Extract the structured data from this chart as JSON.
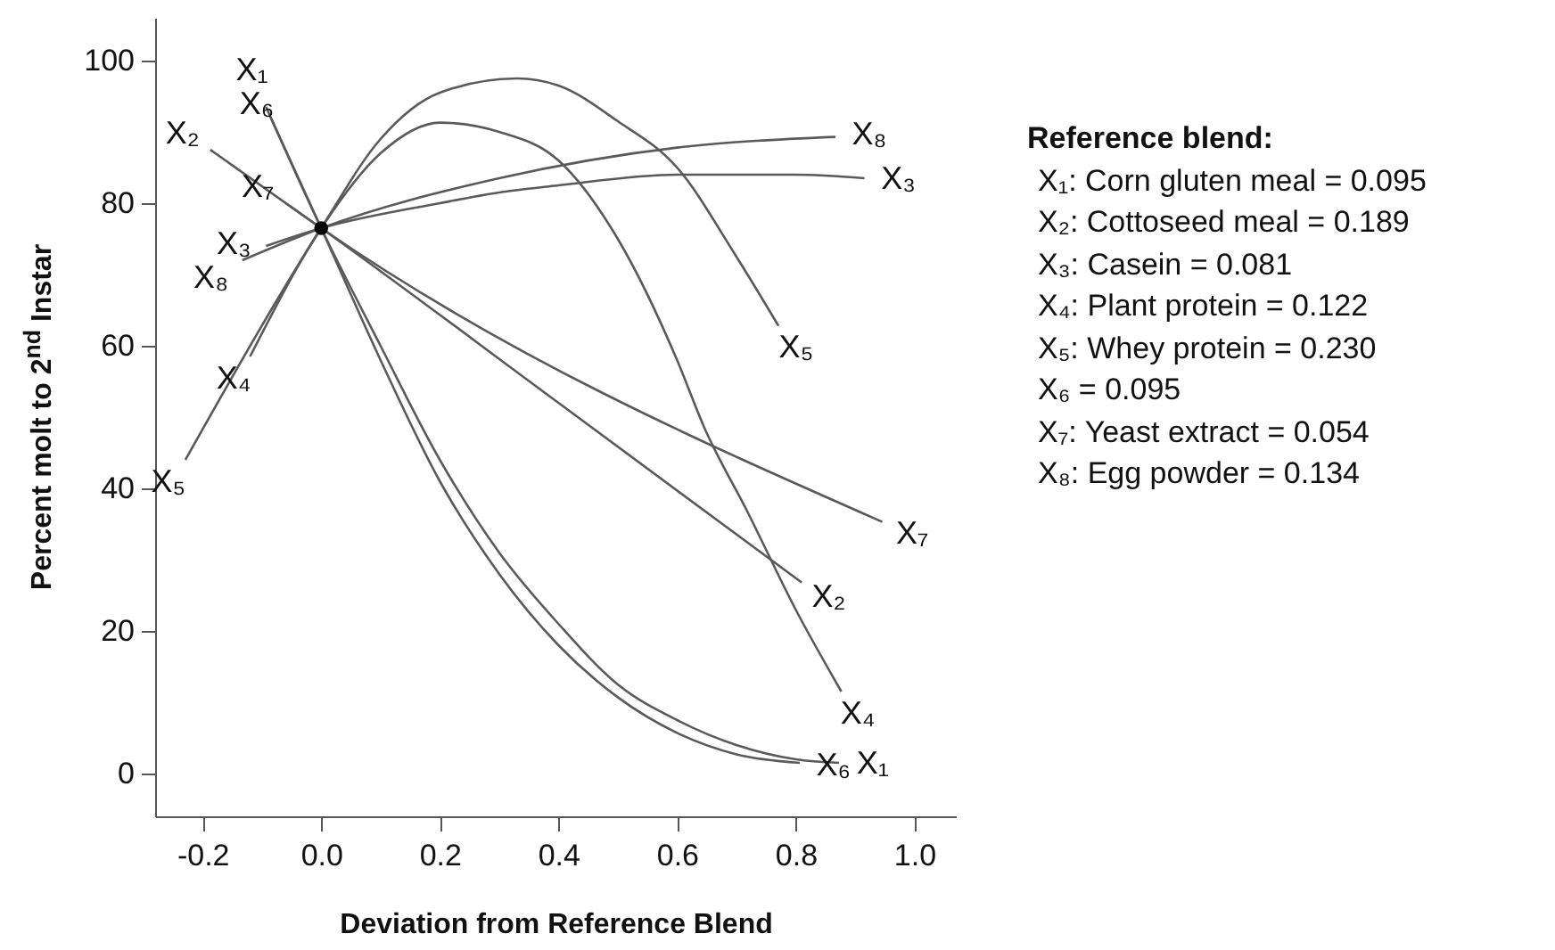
{
  "chart_data": {
    "type": "line",
    "xlabel": "Deviation from Reference Blend",
    "ylabel": "Percent molt to 2$^{nd}$ Instar",
    "xlim": [
      -0.28,
      1.07
    ],
    "ylim": [
      -6,
      106
    ],
    "xticks": [
      -0.2,
      {
        "value": 0,
        "label": "0.0"
      },
      0.2,
      0.4,
      0.6,
      0.8,
      {
        "value": 1,
        "label": "1.0"
      }
    ],
    "yticks": [
      0,
      20,
      40,
      60,
      80,
      100
    ],
    "grid": false,
    "marker": "none",
    "line_style": "solid",
    "series": [
      {
        "name": "X₁",
        "color": "#5a5a5a",
        "x": [
          -0.093,
          0,
          0.1,
          0.2,
          0.3,
          0.4,
          0.5,
          0.6,
          0.7,
          0.8,
          0.873
        ],
        "values": [
          93.5,
          76.5,
          60,
          44,
          31,
          21,
          12.5,
          7.5,
          4,
          2,
          1.5
        ]
      },
      {
        "name": "X₂",
        "color": "#5a5a5a",
        "x": [
          -0.187,
          0,
          0.4,
          0.81
        ],
        "values": [
          87.5,
          76.5,
          52,
          26.8
        ]
      },
      {
        "name": "X₃",
        "color": "#5a5a5a",
        "x": [
          -0.093,
          0,
          0.2,
          0.3,
          0.4,
          0.6,
          0.8,
          0.916
        ],
        "values": [
          74,
          76.5,
          80,
          81.5,
          82.5,
          84,
          84,
          83.5
        ]
      },
      {
        "name": "X₄",
        "color": "#5a5a5a",
        "x": [
          -0.12,
          0,
          0.1,
          0.2,
          0.3,
          0.4,
          0.5,
          0.6,
          0.645,
          0.72,
          0.8,
          0.877
        ],
        "values": [
          58.5,
          76.5,
          87,
          91.3,
          90,
          86,
          75,
          58,
          48.7,
          36.5,
          23,
          11.5
        ]
      },
      {
        "name": "X₅",
        "color": "#5a5a5a",
        "x": [
          -0.229,
          0,
          0.1,
          0.2,
          0.33,
          0.4,
          0.5,
          0.6,
          0.7,
          0.771
        ],
        "values": [
          44,
          76.5,
          89,
          95.5,
          97.5,
          96.5,
          91.5,
          85,
          72.5,
          62.8
        ]
      },
      {
        "name": "X₆",
        "color": "#5a5a5a",
        "x": [
          -0.085,
          0,
          0.1,
          0.2,
          0.3,
          0.4,
          0.5,
          0.6,
          0.7,
          0.807
        ],
        "values": [
          92,
          76.5,
          58,
          41,
          28,
          18,
          10.7,
          5.7,
          2.7,
          1.5
        ]
      },
      {
        "name": "X₇",
        "color": "#5a5a5a",
        "x": [
          -0.06,
          0,
          0.946
        ],
        "values": [
          80,
          76.5,
          35.3
        ]
      },
      {
        "name": "X₈",
        "color": "#5a5a5a",
        "x": [
          -0.133,
          0,
          0.3,
          0.6,
          0.867
        ],
        "values": [
          72,
          76.5,
          83.5,
          87.8,
          89.3
        ]
      },
      {
        "type": "scatter",
        "marker": "circle",
        "color": "#000000",
        "x": [
          0
        ],
        "values": [
          76.5
        ]
      }
    ],
    "annotations": [
      "Reference blend:",
      "X₁: Corn gluten meal = 0.095",
      "X₂: Cottoseed meal = 0.189",
      "X₃: Casein = 0.081",
      "X₄: Plant protein = 0.122",
      "X₅: Whey protein = 0.230",
      "X₆ = 0.095",
      "X₇: Yeast extract = 0.054",
      "X₈: Egg powder = 0.134"
    ]
  }
}
